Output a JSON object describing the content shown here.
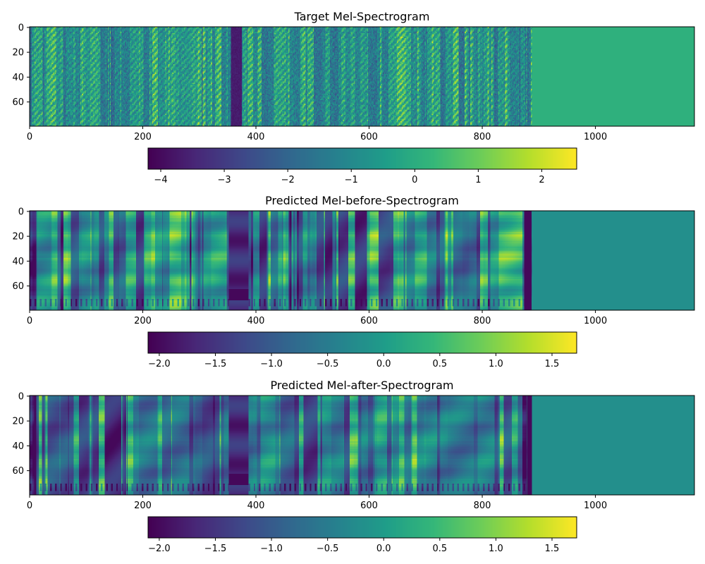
{
  "chart_data": [
    {
      "type": "heatmap",
      "title": "Target Mel-Spectrogram",
      "xlim": [
        0,
        1175
      ],
      "ylim": [
        79.5,
        -0.5
      ],
      "xticks": [
        0,
        200,
        400,
        600,
        800,
        1000
      ],
      "xtick_labels": [
        "0",
        "200",
        "400",
        "600",
        "800",
        "1000"
      ],
      "yticks": [
        0,
        20,
        40,
        60
      ],
      "ytick_labels": [
        "0",
        "20",
        "40",
        "60"
      ],
      "content_end_frame": 888,
      "silence_frames": [
        356,
        374
      ],
      "pad_value": 0.1,
      "colormap": "viridis",
      "colorbar": {
        "orientation": "horizontal",
        "placement": "bottom",
        "vmin": -4.2,
        "vmax": 2.55,
        "ticks": [
          -4,
          -3,
          -2,
          -1,
          0,
          1,
          2
        ],
        "tick_labels": [
          "−4",
          "−3",
          "−2",
          "−1",
          "0",
          "1",
          "2"
        ]
      }
    },
    {
      "type": "heatmap",
      "title": "Predicted Mel-before-Spectrogram",
      "xlim": [
        0,
        1175
      ],
      "ylim": [
        79.5,
        -0.5
      ],
      "xticks": [
        0,
        200,
        400,
        600,
        800,
        1000
      ],
      "xtick_labels": [
        "0",
        "200",
        "400",
        "600",
        "800",
        "1000"
      ],
      "yticks": [
        0,
        20,
        40,
        60
      ],
      "ytick_labels": [
        "0",
        "20",
        "40",
        "60"
      ],
      "content_end_frame": 888,
      "silence_frames": [
        352,
        386
      ],
      "pad_value": -0.2,
      "colormap": "viridis",
      "colorbar": {
        "orientation": "horizontal",
        "placement": "bottom",
        "vmin": -2.1,
        "vmax": 1.72,
        "ticks": [
          -2.0,
          -1.5,
          -1.0,
          -0.5,
          0.0,
          0.5,
          1.0,
          1.5
        ],
        "tick_labels": [
          "−2.0",
          "−1.5",
          "−1.0",
          "−0.5",
          "0.0",
          "0.5",
          "1.0",
          "1.5"
        ]
      }
    },
    {
      "type": "heatmap",
      "title": "Predicted Mel-after-Spectrogram",
      "xlim": [
        0,
        1175
      ],
      "ylim": [
        79.5,
        -0.5
      ],
      "xticks": [
        0,
        200,
        400,
        600,
        800,
        1000
      ],
      "xtick_labels": [
        "0",
        "200",
        "400",
        "600",
        "800",
        "1000"
      ],
      "yticks": [
        0,
        20,
        40,
        60
      ],
      "ytick_labels": [
        "0",
        "20",
        "40",
        "60"
      ],
      "content_end_frame": 888,
      "silence_frames": [
        352,
        386
      ],
      "pad_value": -0.2,
      "colormap": "viridis",
      "colorbar": {
        "orientation": "horizontal",
        "placement": "bottom",
        "vmin": -2.1,
        "vmax": 1.72,
        "ticks": [
          -2.0,
          -1.5,
          -1.0,
          -0.5,
          0.0,
          0.5,
          1.0,
          1.5
        ],
        "tick_labels": [
          "−2.0",
          "−1.5",
          "−1.0",
          "−0.5",
          "0.0",
          "0.5",
          "1.0",
          "1.5"
        ]
      }
    }
  ]
}
